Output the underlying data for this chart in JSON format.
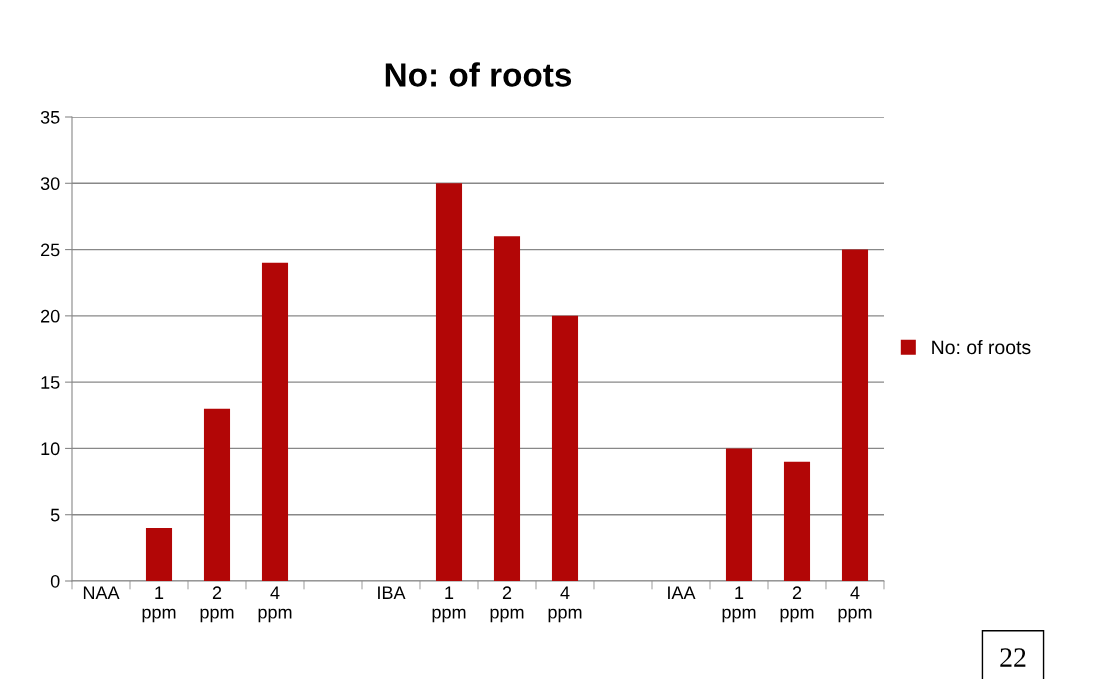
{
  "chart_data": {
    "type": "bar",
    "title": "No: of roots",
    "categories": [
      "NAA",
      "1\nppm",
      "2\nppm",
      "4\nppm",
      null,
      "IBA",
      "1\nppm",
      "2\nppm",
      "4\nppm",
      null,
      "IAA",
      "1\nppm",
      "2\nppm",
      "4\nppm"
    ],
    "series": [
      {
        "name": "No: of roots",
        "color": "#b20606",
        "values": [
          null,
          4,
          13,
          24,
          null,
          null,
          30,
          26,
          20,
          null,
          null,
          10,
          9,
          25
        ]
      }
    ],
    "ylim": [
      0,
      35
    ],
    "yticks": [
      0,
      5,
      10,
      15,
      20,
      25,
      30,
      35
    ],
    "grid": "y",
    "legend": "right",
    "annotations": [
      "22"
    ]
  }
}
